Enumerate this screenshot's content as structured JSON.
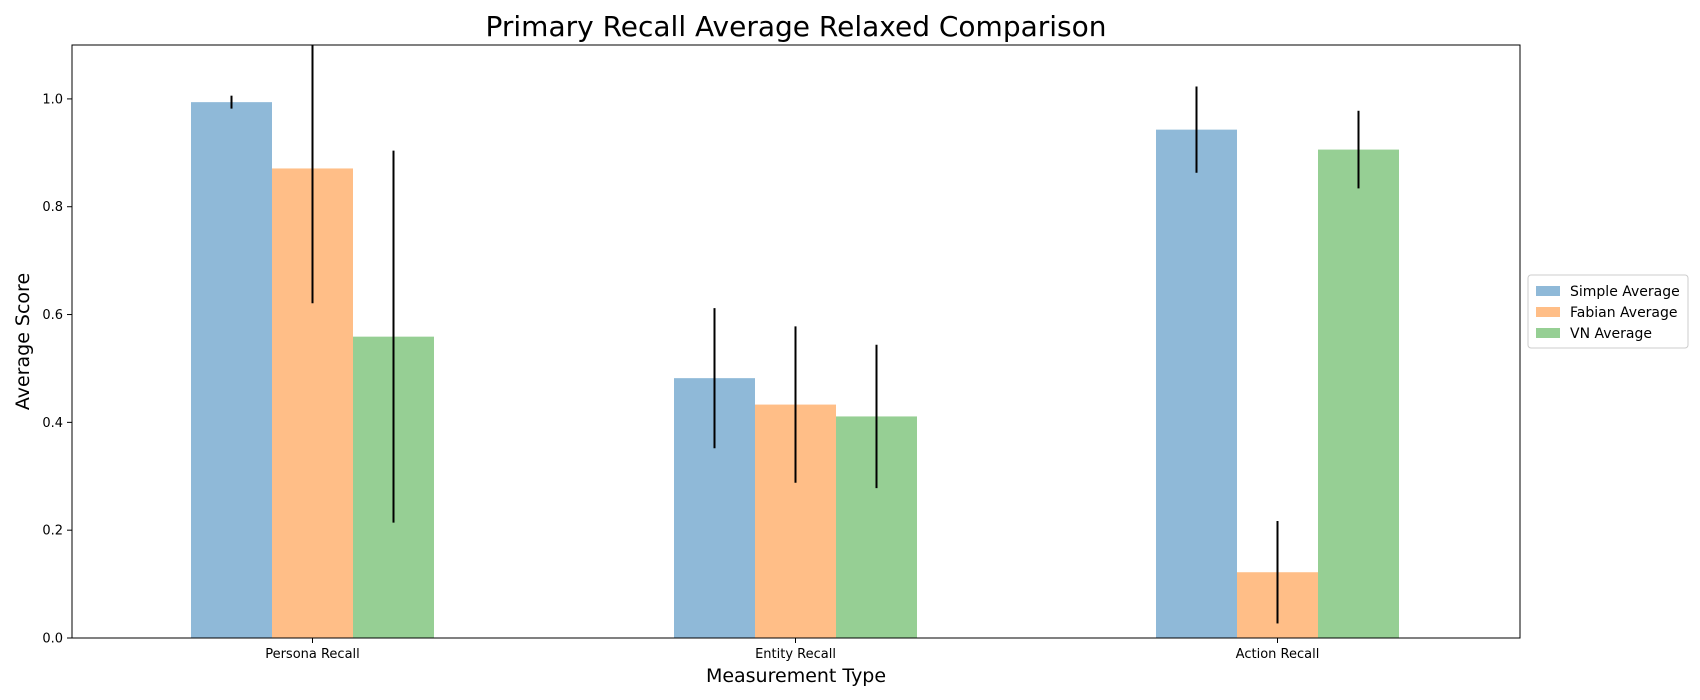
{
  "chart_data": {
    "type": "bar",
    "title": "Primary Recall Average Relaxed Comparison",
    "xlabel": "Measurement Type",
    "ylabel": "Average Score",
    "categories": [
      "Persona Recall",
      "Entity Recall",
      "Action Recall"
    ],
    "ylim": [
      0,
      1.1
    ],
    "yticks": [
      0.0,
      0.2,
      0.4,
      0.6,
      0.8,
      1.0
    ],
    "ytick_labels": [
      "0.0",
      "0.2",
      "0.4",
      "0.6",
      "0.8",
      "1.0"
    ],
    "grid": false,
    "legend_position": "right",
    "series": [
      {
        "name": "Simple Average",
        "color": "#8fb9d8",
        "values": [
          0.994,
          0.482,
          0.943
        ],
        "errors": [
          0.012,
          0.13,
          0.08
        ]
      },
      {
        "name": "Fabian Average",
        "color": "#ffbe87",
        "values": [
          0.871,
          0.433,
          0.122
        ],
        "errors": [
          0.25,
          0.145,
          0.095
        ]
      },
      {
        "name": "VN Average",
        "color": "#96cf94",
        "values": [
          0.559,
          0.411,
          0.906
        ],
        "errors": [
          0.345,
          0.133,
          0.072
        ]
      }
    ]
  }
}
